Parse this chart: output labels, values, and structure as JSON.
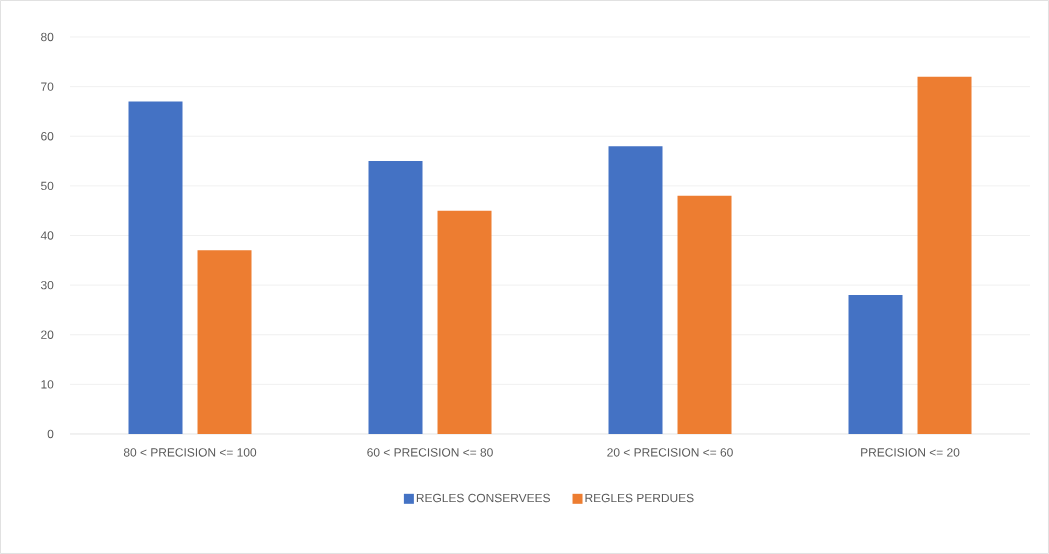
{
  "chart_data": {
    "type": "bar",
    "categories": [
      "80 < PRECISION <= 100",
      "60 < PRECISION <= 80",
      "20 < PRECISION <= 60",
      "PRECISION <= 20"
    ],
    "series": [
      {
        "name": "REGLES CONSERVEES",
        "color": "#4472c4",
        "values": [
          67,
          55,
          58,
          28
        ]
      },
      {
        "name": "REGLES PERDUES",
        "color": "#ed7d31",
        "values": [
          37,
          45,
          48,
          72
        ]
      }
    ],
    "ylim": [
      0,
      80
    ],
    "yticks": [
      0,
      10,
      20,
      30,
      40,
      50,
      60,
      70,
      80
    ],
    "grid": "y",
    "legend": "bottom"
  }
}
